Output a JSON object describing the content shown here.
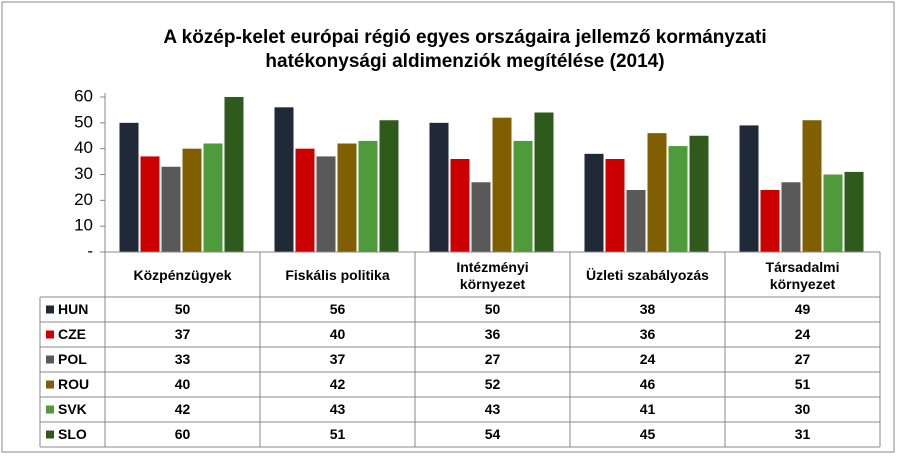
{
  "chart_data": {
    "type": "bar",
    "title": [
      "A közép-kelet európai régió egyes országaira jellemző kormányzati",
      "hatékonysági aldimenziók megítélése (2014)"
    ],
    "categories": [
      "Közpénzügyek",
      "Fiskális politika",
      "Intézményi\nkörnyezet",
      "Üzleti szabályozás",
      "Társadalmi\nkörnyezet"
    ],
    "series": [
      {
        "name": "HUN",
        "color": "#1f2937",
        "values": [
          50,
          56,
          50,
          38,
          49
        ]
      },
      {
        "name": "CZE",
        "color": "#cc0000",
        "values": [
          37,
          40,
          36,
          36,
          24
        ]
      },
      {
        "name": "POL",
        "color": "#595959",
        "values": [
          33,
          37,
          27,
          24,
          27
        ]
      },
      {
        "name": "ROU",
        "color": "#7f5f00",
        "values": [
          40,
          42,
          52,
          46,
          51
        ]
      },
      {
        "name": "SVK",
        "color": "#4f9a3a",
        "values": [
          42,
          43,
          43,
          41,
          30
        ]
      },
      {
        "name": "SLO",
        "color": "#2e5a1c",
        "values": [
          60,
          51,
          54,
          45,
          31
        ]
      }
    ],
    "ylim": [
      0,
      60
    ],
    "yticks": [
      {
        "value": 0,
        "label": "-"
      },
      10,
      20,
      30,
      40,
      50,
      60
    ],
    "grid": false,
    "legend": "table"
  }
}
